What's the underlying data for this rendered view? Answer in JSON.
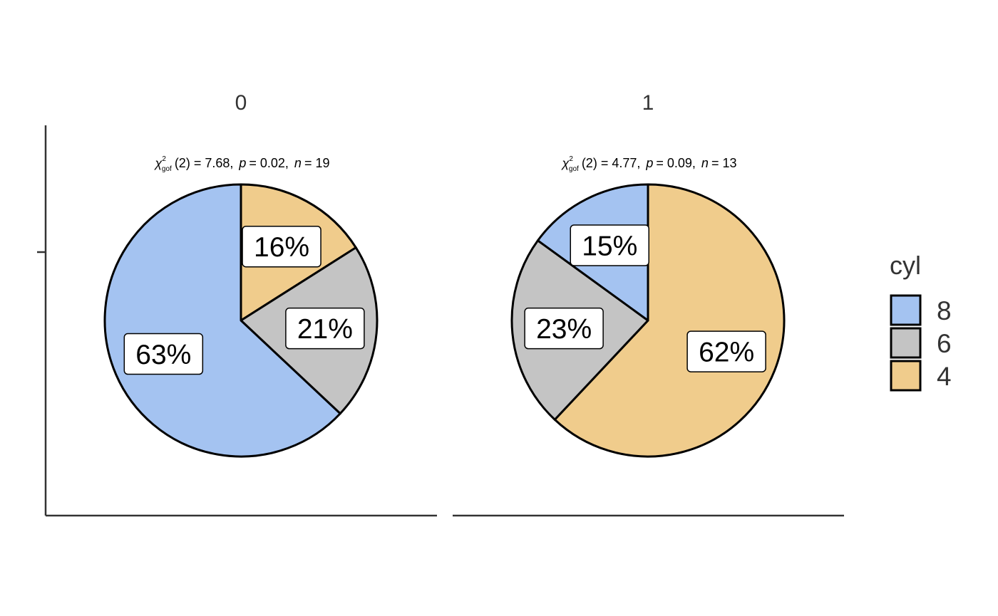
{
  "chart_data": {
    "type": "pie",
    "legend": {
      "title": "cyl",
      "position": "right",
      "entries": [
        "8",
        "6",
        "4"
      ]
    },
    "colors": {
      "8": "#A4C3F1",
      "6": "#C4C4C4",
      "4": "#F0CC8C"
    },
    "panels": [
      {
        "facet": "0",
        "subtitle": {
          "stat": "(2) = 7.68,",
          "p_value": "= 0.02,",
          "n": "= 19"
        },
        "slices": [
          {
            "cyl": "4",
            "value": 16,
            "label": "16%"
          },
          {
            "cyl": "6",
            "value": 21,
            "label": "21%"
          },
          {
            "cyl": "8",
            "value": 63,
            "label": "63%"
          }
        ]
      },
      {
        "facet": "1",
        "subtitle": {
          "stat": "(2) = 4.77,",
          "p_value": "= 0.09,",
          "n": "= 13"
        },
        "slices": [
          {
            "cyl": "4",
            "value": 62,
            "label": "62%"
          },
          {
            "cyl": "6",
            "value": 23,
            "label": "23%"
          },
          {
            "cyl": "8",
            "value": 15,
            "label": "15%"
          }
        ]
      }
    ]
  }
}
